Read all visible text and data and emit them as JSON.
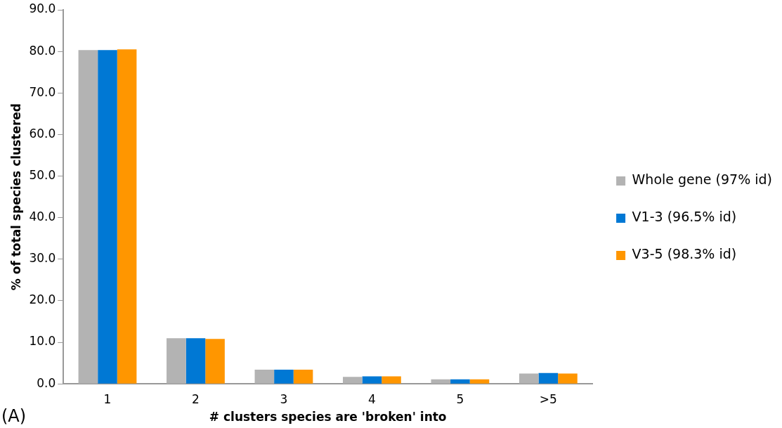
{
  "chart_data": {
    "type": "bar",
    "xlabel": "# clusters species are 'broken' into",
    "ylabel": "% of total species clustered",
    "categories": [
      "1",
      "2",
      "3",
      "4",
      "5",
      ">5"
    ],
    "series": [
      {
        "name": "Whole gene (97% id)",
        "color": "#b3b3b3",
        "values": [
          80.3,
          11.0,
          3.4,
          1.7,
          1.1,
          2.5
        ]
      },
      {
        "name": "V1-3 (96.5% id)",
        "color": "#0078d4",
        "values": [
          80.3,
          11.0,
          3.4,
          1.8,
          1.1,
          2.6
        ]
      },
      {
        "name": "V3-5 (98.3% id)",
        "color": "#ff9600",
        "values": [
          80.5,
          10.8,
          3.4,
          1.8,
          1.1,
          2.5
        ]
      }
    ],
    "ylim": [
      0,
      90
    ],
    "yticks": [
      {
        "value": 0,
        "label": "0.0"
      },
      {
        "value": 10,
        "label": "10.0"
      },
      {
        "value": 20,
        "label": "20.0"
      },
      {
        "value": 30,
        "label": "30.0"
      },
      {
        "value": 40,
        "label": "40.0"
      },
      {
        "value": 50,
        "label": "50.0"
      },
      {
        "value": 60,
        "label": "60.0"
      },
      {
        "value": 70,
        "label": "70.0"
      },
      {
        "value": 80,
        "label": "80.0"
      },
      {
        "value": 90,
        "label": "90.0"
      }
    ],
    "grid": false,
    "legend": "right",
    "annotations": [
      "(A)"
    ]
  }
}
